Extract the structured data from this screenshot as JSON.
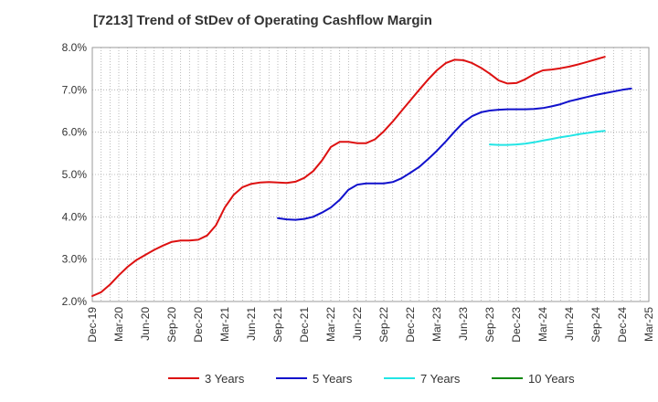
{
  "chart_data": {
    "type": "line",
    "title": "[7213]  Trend of StDev of Operating Cashflow Margin",
    "x_ticks": [
      "Dec-19",
      "Mar-20",
      "Jun-20",
      "Sep-20",
      "Dec-20",
      "Mar-21",
      "Jun-21",
      "Sep-21",
      "Dec-21",
      "Mar-22",
      "Jun-22",
      "Sep-22",
      "Dec-22",
      "Mar-23",
      "Jun-23",
      "Sep-23",
      "Dec-23",
      "Mar-24",
      "Jun-24",
      "Sep-24",
      "Dec-24",
      "Mar-25"
    ],
    "y_ticks": [
      "2.0%",
      "3.0%",
      "4.0%",
      "5.0%",
      "6.0%",
      "7.0%",
      "8.0%"
    ],
    "ylim": [
      2.0,
      8.0
    ],
    "grid": true,
    "legend_position": "bottom",
    "series": [
      {
        "name": "3 Years",
        "color": "#dd1111",
        "start_index": 0,
        "values": [
          2.13,
          2.22,
          2.4,
          2.62,
          2.82,
          2.98,
          3.1,
          3.22,
          3.32,
          3.41,
          3.44,
          3.44,
          3.46,
          3.56,
          3.8,
          4.22,
          4.52,
          4.7,
          4.78,
          4.81,
          4.82,
          4.81,
          4.8,
          4.83,
          4.92,
          5.08,
          5.33,
          5.65,
          5.77,
          5.77,
          5.74,
          5.74,
          5.83,
          6.02,
          6.25,
          6.5,
          6.75,
          7.0,
          7.24,
          7.46,
          7.63,
          7.71,
          7.7,
          7.63,
          7.52,
          7.38,
          7.22,
          7.15,
          7.16,
          7.25,
          7.37,
          7.46,
          7.48,
          7.51,
          7.55,
          7.6,
          7.66,
          7.72,
          7.78
        ]
      },
      {
        "name": "5 Years",
        "color": "#1111cc",
        "start_index": 21,
        "values": [
          3.97,
          3.94,
          3.93,
          3.95,
          4.0,
          4.1,
          4.22,
          4.4,
          4.64,
          4.76,
          4.79,
          4.79,
          4.79,
          4.82,
          4.91,
          5.04,
          5.18,
          5.36,
          5.56,
          5.78,
          6.01,
          6.23,
          6.38,
          6.47,
          6.51,
          6.53,
          6.54,
          6.54,
          6.54,
          6.55,
          6.57,
          6.61,
          6.66,
          6.73,
          6.78,
          6.83,
          6.88,
          6.92,
          6.96,
          7.0,
          7.03
        ]
      },
      {
        "name": "7 Years",
        "color": "#22e5e5",
        "start_index": 45,
        "values": [
          5.71,
          5.7,
          5.7,
          5.71,
          5.73,
          5.76,
          5.8,
          5.84,
          5.88,
          5.91,
          5.95,
          5.98,
          6.01,
          6.03
        ]
      },
      {
        "name": "10 Years",
        "color": "#118811",
        "start_index": 0,
        "values": []
      }
    ]
  }
}
